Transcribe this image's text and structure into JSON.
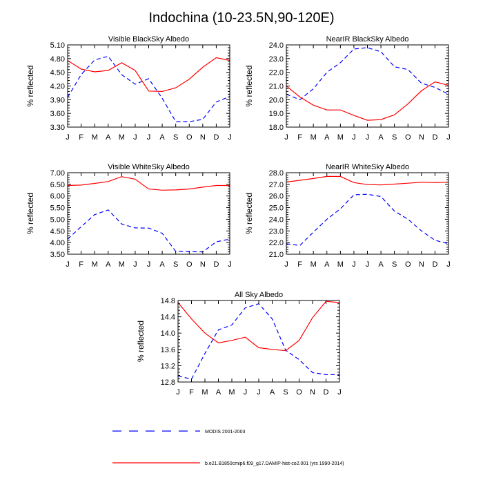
{
  "title": "Indochina (10-23.5N,90-120E)",
  "colors": {
    "series_0": "#0000ff",
    "series_1": "#ff0000",
    "axis": "#000000"
  },
  "legend": [
    {
      "label": "MODIS 2001-2003",
      "style": "dashed",
      "color": "#0000ff"
    },
    {
      "label": "b.e21.B1850cmip6.f09_g17.DAMIP-hist-co2.001 (yrs 1990-2014)",
      "style": "solid",
      "color": "#ff0000"
    }
  ],
  "chart_data": [
    {
      "type": "line",
      "title": "Visible BlackSky Albedo",
      "xlabel": "",
      "ylabel": "% reflected",
      "categories": [
        "J",
        "F",
        "M",
        "A",
        "M",
        "J",
        "J",
        "A",
        "S",
        "O",
        "N",
        "D",
        "J"
      ],
      "ylim": [
        3.3,
        5.1
      ],
      "yticks": [
        "3.30",
        "3.60",
        "3.90",
        "4.20",
        "4.50",
        "4.80",
        "5.10"
      ],
      "series": [
        {
          "name": "MODIS 2001-2003",
          "values": [
            3.95,
            4.45,
            4.77,
            4.85,
            4.45,
            4.24,
            4.36,
            3.93,
            3.42,
            3.42,
            3.47,
            3.85,
            3.97
          ]
        },
        {
          "name": "b.e21.B1850cmip6.f09_g17.DAMIP-hist-co2.001 (yrs 1990-2014)",
          "values": [
            4.76,
            4.57,
            4.51,
            4.54,
            4.71,
            4.54,
            4.09,
            4.08,
            4.16,
            4.35,
            4.61,
            4.82,
            4.76
          ]
        }
      ]
    },
    {
      "type": "line",
      "title": "NearIR BlackSky Albedo",
      "xlabel": "",
      "ylabel": "% reflected",
      "categories": [
        "J",
        "F",
        "M",
        "A",
        "M",
        "J",
        "J",
        "A",
        "S",
        "O",
        "N",
        "D",
        "J"
      ],
      "ylim": [
        18.0,
        24.0
      ],
      "yticks": [
        "18.0",
        "19.0",
        "20.0",
        "21.0",
        "22.0",
        "23.0",
        "24.0"
      ],
      "series": [
        {
          "name": "MODIS 2001-2003",
          "values": [
            20.4,
            20.0,
            20.8,
            22.0,
            22.7,
            23.7,
            23.8,
            23.5,
            22.4,
            22.2,
            21.2,
            20.9,
            20.4
          ]
        },
        {
          "name": "b.e21.B1850cmip6.f09_g17.DAMIP-hist-co2.001 (yrs 1990-2014)",
          "values": [
            21.0,
            20.2,
            19.6,
            19.25,
            19.25,
            18.85,
            18.5,
            18.55,
            18.9,
            19.7,
            20.65,
            21.3,
            21.05
          ]
        }
      ]
    },
    {
      "type": "line",
      "title": "Visible WhiteSky Albedo",
      "xlabel": "",
      "ylabel": "% reflected",
      "categories": [
        "J",
        "F",
        "M",
        "A",
        "M",
        "J",
        "J",
        "A",
        "S",
        "O",
        "N",
        "D",
        "J"
      ],
      "ylim": [
        3.5,
        7.0
      ],
      "yticks": [
        "3.50",
        "4.00",
        "4.50",
        "5.00",
        "5.50",
        "6.00",
        "6.50",
        "7.00"
      ],
      "series": [
        {
          "name": "MODIS 2001-2003",
          "values": [
            4.15,
            4.68,
            5.2,
            5.4,
            4.8,
            4.63,
            4.62,
            4.4,
            3.62,
            3.61,
            3.6,
            4.03,
            4.15
          ]
        },
        {
          "name": "b.e21.B1850cmip6.f09_g17.DAMIP-hist-co2.001 (yrs 1990-2014)",
          "values": [
            6.45,
            6.47,
            6.54,
            6.62,
            6.83,
            6.72,
            6.3,
            6.25,
            6.26,
            6.3,
            6.38,
            6.45,
            6.45
          ]
        }
      ]
    },
    {
      "type": "line",
      "title": "NearIR WhiteSky Albedo",
      "xlabel": "",
      "ylabel": "% reflected",
      "categories": [
        "J",
        "F",
        "M",
        "A",
        "M",
        "J",
        "J",
        "A",
        "S",
        "O",
        "N",
        "D",
        "J"
      ],
      "ylim": [
        21.0,
        28.0
      ],
      "yticks": [
        "21.0",
        "22.0",
        "23.0",
        "24.0",
        "25.0",
        "26.0",
        "27.0",
        "28.0"
      ],
      "series": [
        {
          "name": "MODIS 2001-2003",
          "values": [
            21.9,
            21.75,
            22.9,
            24.0,
            24.9,
            26.1,
            26.15,
            25.95,
            24.7,
            24.0,
            23.0,
            22.2,
            21.9
          ]
        },
        {
          "name": "b.e21.B1850cmip6.f09_g17.DAMIP-hist-co2.001 (yrs 1990-2014)",
          "values": [
            27.2,
            27.35,
            27.5,
            27.68,
            27.68,
            27.15,
            26.98,
            26.95,
            27.02,
            27.1,
            27.18,
            27.15,
            27.18
          ]
        }
      ]
    },
    {
      "type": "line",
      "title": "All Sky Albedo",
      "xlabel": "",
      "ylabel": "% reflected",
      "categories": [
        "J",
        "F",
        "M",
        "A",
        "M",
        "J",
        "J",
        "A",
        "S",
        "O",
        "N",
        "D",
        "J"
      ],
      "ylim": [
        12.8,
        14.8
      ],
      "yticks": [
        "12.8",
        "13.2",
        "13.6",
        "14.0",
        "14.4",
        "14.8"
      ],
      "series": [
        {
          "name": "MODIS 2001-2003",
          "values": [
            12.95,
            12.87,
            13.5,
            14.08,
            14.2,
            14.62,
            14.72,
            14.35,
            13.58,
            13.35,
            13.03,
            12.98,
            12.98
          ]
        },
        {
          "name": "b.e21.B1850cmip6.f09_g17.DAMIP-hist-co2.001 (yrs 1990-2014)",
          "values": [
            14.75,
            14.35,
            14.0,
            13.76,
            13.82,
            13.9,
            13.64,
            13.6,
            13.57,
            13.82,
            14.38,
            14.78,
            14.75
          ]
        }
      ]
    }
  ]
}
